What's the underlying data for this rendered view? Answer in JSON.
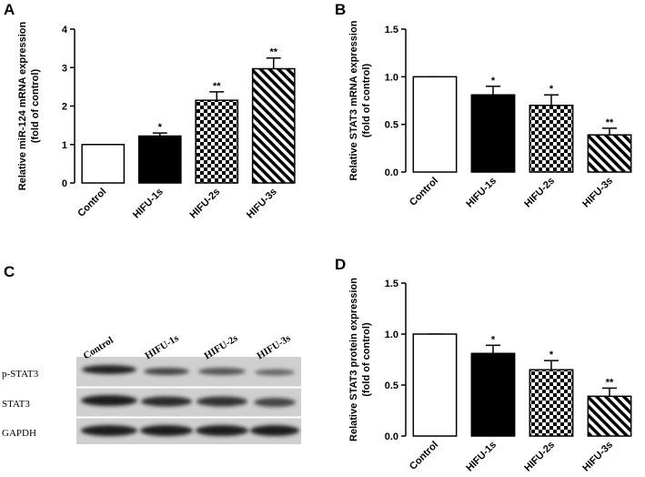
{
  "chart_data": [
    {
      "type": "bar",
      "panel": "A",
      "ylabel": [
        "Relative miR-124 mRNA expression",
        "(fold of control)"
      ],
      "categories": [
        "Control",
        "HIFU-1s",
        "HIFU-2s",
        "HIFU-3s"
      ],
      "values": [
        1,
        1.22,
        2.15,
        2.97
      ],
      "errors": [
        0,
        0.08,
        0.22,
        0.28
      ],
      "significance": [
        null,
        "*",
        "**",
        "**"
      ],
      "patterns": [
        "white",
        "black",
        "checker",
        "hatch"
      ],
      "ylim": [
        0,
        4
      ],
      "yticks": [
        0,
        1,
        2,
        3,
        4
      ]
    },
    {
      "type": "bar",
      "panel": "B",
      "ylabel": [
        "Relative STAT3 mRNA expression",
        "(fold of control)"
      ],
      "categories": [
        "Control",
        "HIFU-1s",
        "HIFU-2s",
        "HIFU-3s"
      ],
      "values": [
        1,
        0.81,
        0.7,
        0.39
      ],
      "errors": [
        0,
        0.09,
        0.11,
        0.07
      ],
      "significance": [
        null,
        "*",
        "*",
        "**"
      ],
      "patterns": [
        "white",
        "black",
        "checker",
        "hatch"
      ],
      "ylim": [
        0,
        1.5
      ],
      "yticks": [
        {
          "value": 0,
          "label": "0.0"
        },
        0.5,
        {
          "value": 1,
          "label": "1.0"
        },
        1.5
      ]
    },
    {
      "type": "bar",
      "panel": "D",
      "ylabel": [
        "Relative STAT3 protein expression",
        "(fold of control)"
      ],
      "categories": [
        "Control",
        "HIFU-1s",
        "HIFU-2s",
        "HIFU-3s"
      ],
      "values": [
        1,
        0.81,
        0.65,
        0.39
      ],
      "errors": [
        0,
        0.08,
        0.09,
        0.08
      ],
      "significance": [
        null,
        "*",
        "*",
        "**"
      ],
      "patterns": [
        "white",
        "black",
        "checker",
        "hatch"
      ],
      "ylim": [
        0,
        1.5
      ],
      "yticks": [
        {
          "value": 0,
          "label": "0.0"
        },
        0.5,
        {
          "value": 1,
          "label": "1.0"
        },
        1.5
      ]
    }
  ],
  "blot": {
    "panel": "C",
    "columns": [
      "Control",
      "HIFU-1s",
      "HIFU-2s",
      "HIFU-3s"
    ],
    "rows": [
      "p-STAT3",
      "STAT3",
      "GAPDH"
    ]
  }
}
